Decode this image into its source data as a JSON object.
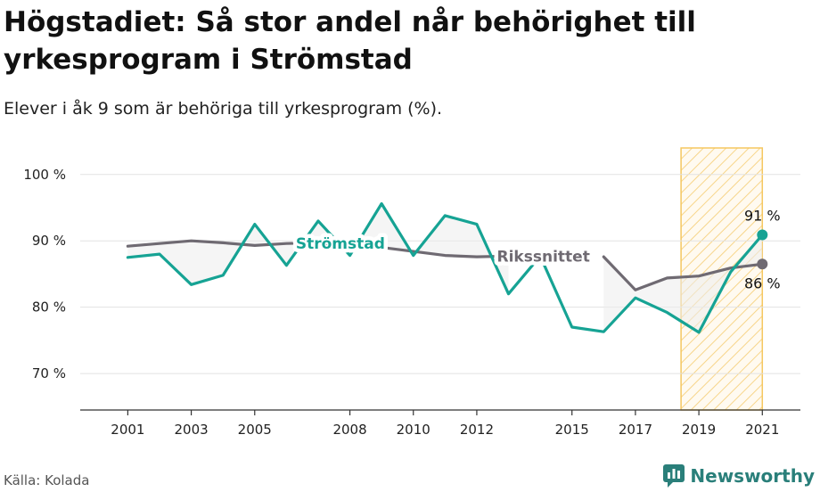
{
  "header": {
    "title": "Högstadiet: Så stor andel når behörighet till yrkesprogram i Strömstad",
    "subtitle": "Elever i åk 9 som är behöriga till yrkesprogram (%)."
  },
  "footer": {
    "source": "Källa: Kolada",
    "brand": "Newsworthy"
  },
  "colors": {
    "local": "#16a394",
    "national": "#6f6a72",
    "highlight_stroke": "#f5c760"
  },
  "chart_data": {
    "type": "line",
    "title": "Högstadiet: Så stor andel når behörighet till yrkesprogram i Strömstad",
    "subtitle": "Elever i åk 9 som är behöriga till yrkesprogram (%).",
    "xlabel": "",
    "ylabel": "",
    "x": [
      2001,
      2002,
      2003,
      2004,
      2005,
      2006,
      2007,
      2008,
      2009,
      2010,
      2011,
      2012,
      2013,
      2014,
      2015,
      2016,
      2017,
      2018,
      2019,
      2020,
      2021
    ],
    "x_ticks": [
      "2001",
      "2003",
      "2005",
      "2008",
      "2010",
      "2012",
      "2015",
      "2017",
      "2019",
      "2021"
    ],
    "y_ticks": [
      "70 %",
      "80 %",
      "90 %",
      "100 %"
    ],
    "ylim": [
      64.5,
      104
    ],
    "grid": true,
    "highlight_range": [
      2019,
      2021
    ],
    "series": [
      {
        "name": "Strömstad",
        "values": [
          87.5,
          88,
          83.4,
          84.8,
          92.5,
          86.3,
          93,
          87.8,
          95.6,
          87.8,
          93.8,
          92.5,
          82,
          87.7,
          77,
          76.3,
          81.4,
          79.2,
          76.2,
          85.3,
          90.9
        ]
      },
      {
        "name": "Rikssnittet",
        "values": [
          89.2,
          89.6,
          90,
          89.7,
          89.3,
          89.6,
          89.7,
          89.4,
          89,
          88.4,
          87.8,
          87.6,
          87.7,
          null,
          null,
          87.6,
          82.6,
          84.4,
          84.7,
          85.9,
          86.5
        ]
      }
    ],
    "end_labels": {
      "Strömstad": "91 %",
      "Rikssnittet": "86 %"
    }
  }
}
